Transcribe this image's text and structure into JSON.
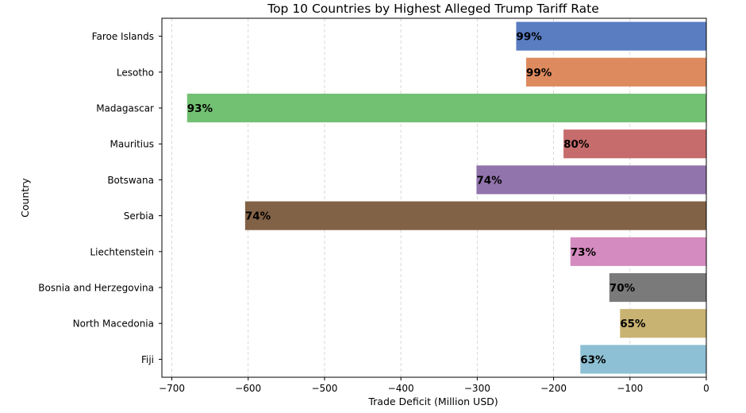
{
  "chart_data": {
    "type": "bar",
    "orientation": "horizontal",
    "title": "Top 10 Countries by Highest Alleged Trump Tariff Rate",
    "xlabel": "Trade Deficit (Million USD)",
    "ylabel": "Country",
    "xlim": [
      -713,
      0
    ],
    "xticks": [
      -700,
      -600,
      -500,
      -400,
      -300,
      -200,
      -100,
      0
    ],
    "xtick_labels": [
      "−700",
      "−600",
      "−500",
      "−400",
      "−300",
      "−200",
      "−100",
      "0"
    ],
    "grid": "x-dashed",
    "categories": [
      "Faroe Islands",
      "Lesotho",
      "Madagascar",
      "Mauritius",
      "Botswana",
      "Serbia",
      "Liechtenstein",
      "Bosnia and Herzegovina",
      "North Macedonia",
      "Fiji"
    ],
    "values": [
      -249,
      -236,
      -680,
      -187,
      -301,
      -604,
      -178,
      -127,
      -113,
      -165
    ],
    "data_labels": [
      "99%",
      "99%",
      "93%",
      "80%",
      "74%",
      "74%",
      "73%",
      "70%",
      "65%",
      "63%"
    ],
    "colors": [
      "#5a7dc2",
      "#dd8a5e",
      "#72c172",
      "#c76c6c",
      "#9274ad",
      "#826246",
      "#d48bbf",
      "#7a7a7a",
      "#c9b372",
      "#8dc0d4"
    ]
  }
}
